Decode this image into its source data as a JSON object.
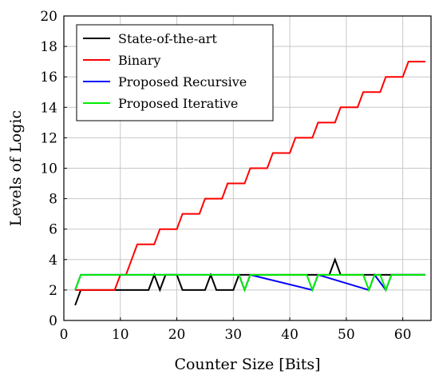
{
  "chart_data": {
    "type": "line",
    "title": "",
    "xlabel": "Counter Size [Bits]",
    "ylabel": "Levels of Logic",
    "xlim": [
      0,
      65
    ],
    "ylim": [
      0,
      20
    ],
    "xticks": [
      0,
      10,
      20,
      30,
      40,
      50,
      60
    ],
    "yticks": [
      0,
      2,
      4,
      6,
      8,
      10,
      12,
      14,
      16,
      18,
      20
    ],
    "grid": true,
    "legend_position": "top-left",
    "series": [
      {
        "name": "State-of-the-art",
        "color": "#000000",
        "x": [
          2,
          3,
          9,
          10,
          11,
          12,
          13,
          14,
          15,
          16,
          17,
          18,
          19,
          20,
          21,
          22,
          23,
          24,
          25,
          26,
          27,
          28,
          29,
          30,
          31,
          32,
          33,
          34,
          35,
          36,
          37,
          38,
          39,
          40,
          41,
          42,
          43,
          44,
          45,
          46,
          47,
          48,
          49,
          50,
          51,
          52,
          53,
          54,
          55,
          56,
          57,
          58,
          59,
          60,
          61,
          62,
          63,
          64
        ],
        "y": [
          1,
          2,
          2,
          2,
          2,
          2,
          2,
          2,
          2,
          3,
          2,
          3,
          3,
          3,
          2,
          2,
          2,
          2,
          2,
          3,
          2,
          2,
          2,
          2,
          3,
          3,
          3,
          3,
          3,
          3,
          3,
          3,
          3,
          3,
          3,
          3,
          3,
          3,
          3,
          3,
          3,
          4,
          3,
          3,
          3,
          3,
          3,
          3,
          3,
          3,
          3,
          3,
          3,
          3,
          3,
          3,
          3,
          3
        ]
      },
      {
        "name": "Binary",
        "color": "#ff0000",
        "x": [
          2,
          3,
          8,
          9,
          10,
          11,
          12,
          13,
          14,
          15,
          16,
          17,
          18,
          19,
          20,
          21,
          22,
          23,
          24,
          25,
          26,
          27,
          28,
          29,
          30,
          31,
          32,
          33,
          34,
          35,
          36,
          37,
          38,
          39,
          40,
          41,
          42,
          43,
          44,
          45,
          46,
          47,
          48,
          49,
          50,
          51,
          52,
          53,
          54,
          55,
          56,
          57,
          58,
          59,
          60,
          61,
          62,
          63,
          64
        ],
        "y": [
          2,
          2,
          2,
          2,
          3,
          3,
          4,
          5,
          5,
          5,
          5,
          6,
          6,
          6,
          6,
          7,
          7,
          7,
          7,
          8,
          8,
          8,
          8,
          9,
          9,
          9,
          9,
          10,
          10,
          10,
          10,
          11,
          11,
          11,
          11,
          12,
          12,
          12,
          12,
          13,
          13,
          13,
          13,
          14,
          14,
          14,
          14,
          15,
          15,
          15,
          15,
          16,
          16,
          16,
          16,
          17,
          17,
          17,
          17
        ]
      },
      {
        "name": "Proposed Recursive",
        "color": "#0000ff",
        "x": [
          2,
          3,
          31,
          32,
          33,
          44,
          45,
          54,
          55,
          57,
          58,
          64
        ],
        "y": [
          2,
          3,
          3,
          2,
          3,
          2,
          3,
          2,
          3,
          2,
          3,
          3
        ]
      },
      {
        "name": "Proposed Iterative",
        "color": "#00ee00",
        "x": [
          2,
          3,
          31,
          32,
          33,
          43,
          44,
          45,
          53,
          54,
          55,
          56,
          57,
          58,
          64
        ],
        "y": [
          2,
          3,
          3,
          2,
          3,
          3,
          2,
          3,
          3,
          2,
          3,
          3,
          2,
          3,
          3
        ]
      }
    ]
  }
}
